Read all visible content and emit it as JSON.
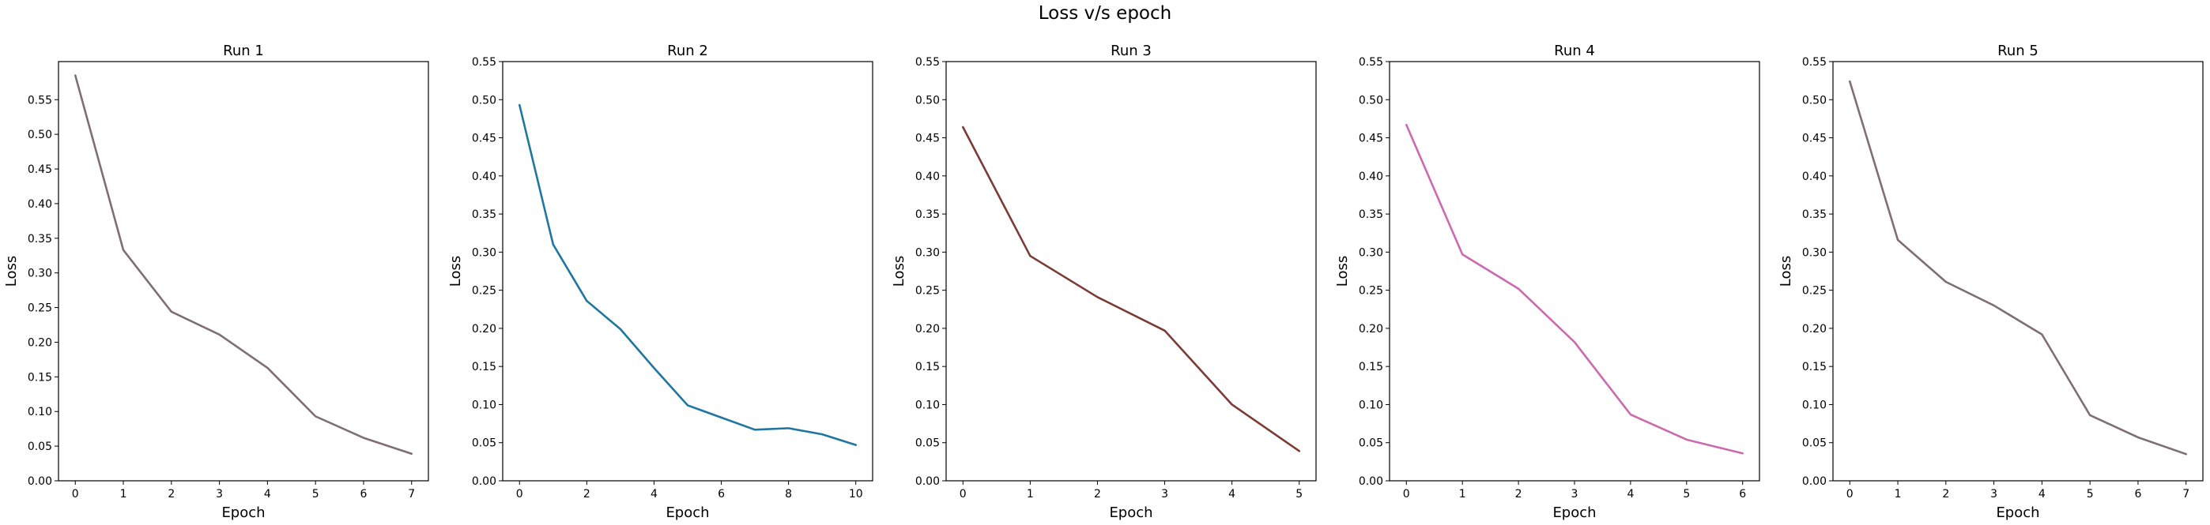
{
  "title": "Loss v/s epoch",
  "chart_data": [
    {
      "type": "line",
      "title": "Run 1",
      "xlabel": "Epoch",
      "ylabel": "Loss",
      "x": [
        0,
        1,
        2,
        3,
        4,
        5,
        6,
        7
      ],
      "series": [
        {
          "values": [
            0.585,
            0.333,
            0.244,
            0.211,
            0.163,
            0.093,
            0.062,
            0.039
          ],
          "color": "#7f6f72"
        }
      ],
      "xlim": [
        -0.35,
        7.35
      ],
      "ylim": [
        0.0,
        0.605
      ],
      "xticks": [
        0,
        1,
        2,
        3,
        4,
        5,
        6,
        7
      ],
      "yticks": [
        "0.00",
        "0.05",
        "0.10",
        "0.15",
        "0.20",
        "0.25",
        "0.30",
        "0.35",
        "0.40",
        "0.45",
        "0.50",
        "0.55"
      ],
      "grid": false
    },
    {
      "type": "line",
      "title": "Run 2",
      "xlabel": "Epoch",
      "ylabel": "Loss",
      "x": [
        0,
        1,
        2,
        3,
        4,
        5,
        6,
        7,
        8,
        9,
        10
      ],
      "series": [
        {
          "values": [
            0.493,
            0.31,
            0.236,
            0.199,
            0.148,
            0.099,
            0.083,
            0.067,
            0.069,
            0.061,
            0.047
          ],
          "color": "#1f77a0"
        }
      ],
      "xlim": [
        -0.5,
        10.5
      ],
      "ylim": [
        0.0,
        0.55
      ],
      "xticks": [
        0,
        2,
        4,
        6,
        8,
        10
      ],
      "yticks": [
        "0.00",
        "0.05",
        "0.10",
        "0.15",
        "0.20",
        "0.25",
        "0.30",
        "0.35",
        "0.40",
        "0.45",
        "0.50",
        "0.55"
      ],
      "grid": false
    },
    {
      "type": "line",
      "title": "Run 3",
      "xlabel": "Epoch",
      "ylabel": "Loss",
      "x": [
        0,
        1,
        2,
        3,
        4,
        5
      ],
      "series": [
        {
          "values": [
            0.464,
            0.295,
            0.241,
            0.197,
            0.1,
            0.039
          ],
          "color": "#7b3b36"
        }
      ],
      "xlim": [
        -0.25,
        5.25
      ],
      "ylim": [
        0.0,
        0.55
      ],
      "xticks": [
        0,
        1,
        2,
        3,
        4,
        5
      ],
      "yticks": [
        "0.00",
        "0.05",
        "0.10",
        "0.15",
        "0.20",
        "0.25",
        "0.30",
        "0.35",
        "0.40",
        "0.45",
        "0.50",
        "0.55"
      ],
      "grid": false
    },
    {
      "type": "line",
      "title": "Run 4",
      "xlabel": "Epoch",
      "ylabel": "Loss",
      "x": [
        0,
        1,
        2,
        3,
        4,
        5,
        6
      ],
      "series": [
        {
          "values": [
            0.467,
            0.297,
            0.252,
            0.182,
            0.087,
            0.054,
            0.036
          ],
          "color": "#cc6aae"
        }
      ],
      "xlim": [
        -0.3,
        6.3
      ],
      "ylim": [
        0.0,
        0.55
      ],
      "xticks": [
        0,
        1,
        2,
        3,
        4,
        5,
        6
      ],
      "yticks": [
        "0.00",
        "0.05",
        "0.10",
        "0.15",
        "0.20",
        "0.25",
        "0.30",
        "0.35",
        "0.40",
        "0.45",
        "0.50",
        "0.55"
      ],
      "grid": false
    },
    {
      "type": "line",
      "title": "Run 5",
      "xlabel": "Epoch",
      "ylabel": "Loss",
      "x": [
        0,
        1,
        2,
        3,
        4,
        5,
        6,
        7
      ],
      "series": [
        {
          "values": [
            0.524,
            0.316,
            0.261,
            0.23,
            0.192,
            0.086,
            0.057,
            0.035
          ],
          "color": "#7f6f72"
        }
      ],
      "xlim": [
        -0.35,
        7.35
      ],
      "ylim": [
        0.0,
        0.55
      ],
      "xticks": [
        0,
        1,
        2,
        3,
        4,
        5,
        6,
        7
      ],
      "yticks": [
        "0.00",
        "0.05",
        "0.10",
        "0.15",
        "0.20",
        "0.25",
        "0.30",
        "0.35",
        "0.40",
        "0.45",
        "0.50",
        "0.55"
      ],
      "grid": false
    }
  ]
}
